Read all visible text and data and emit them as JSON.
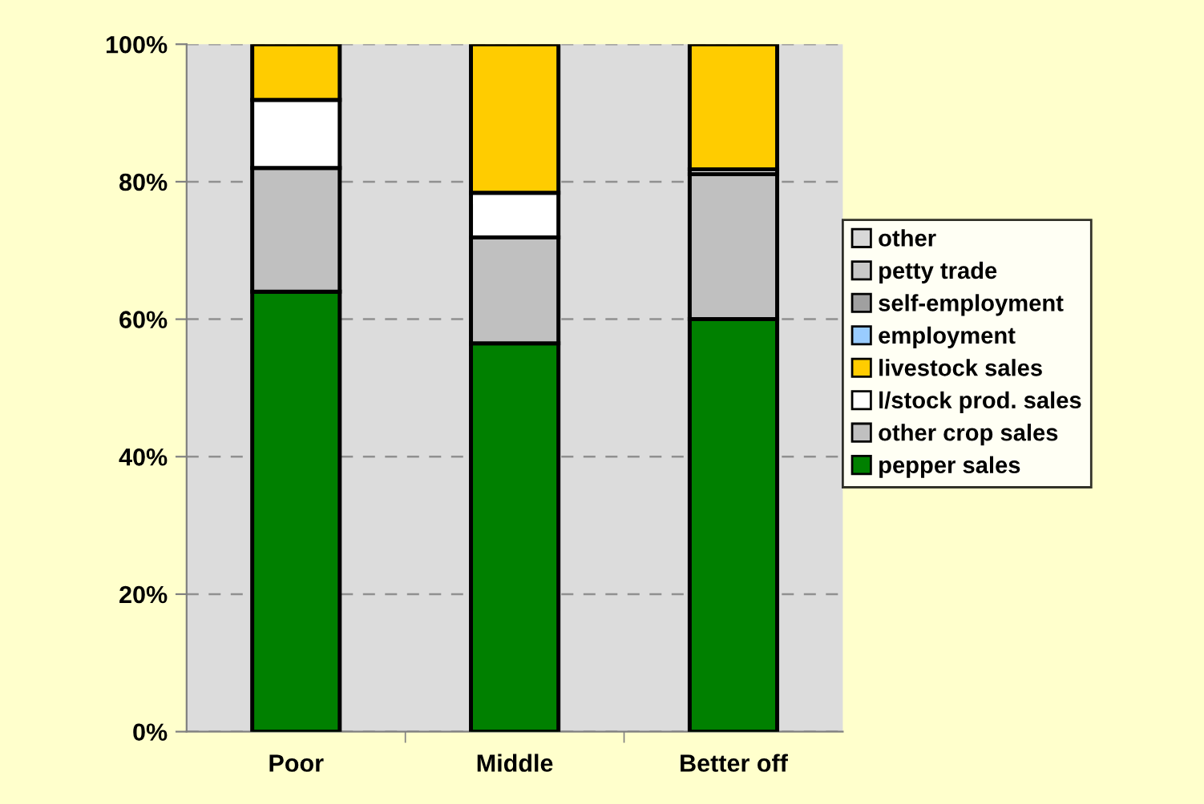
{
  "chart_data": {
    "type": "bar",
    "stacked": true,
    "categories": [
      "Poor",
      "Middle",
      "Better off"
    ],
    "series": [
      {
        "name": "pepper sales",
        "color": "#008000",
        "values": [
          64,
          56.5,
          60
        ]
      },
      {
        "name": "other crop sales",
        "color": "#c0c0c0",
        "values": [
          18,
          15.4,
          21.1
        ]
      },
      {
        "name": "l/stock prod. sales",
        "color": "#ffffff",
        "values": [
          9.9,
          6.5,
          0.7
        ]
      },
      {
        "name": "livestock sales",
        "color": "#ffcc00",
        "values": [
          8.1,
          21.6,
          18.2
        ]
      },
      {
        "name": "employment",
        "color": "#99ccff",
        "values": [
          0,
          0,
          0
        ]
      },
      {
        "name": "self-employment",
        "color": "#a0a0a0",
        "values": [
          0,
          0,
          0
        ]
      },
      {
        "name": "petty trade",
        "color": "#c8c8c8",
        "values": [
          0,
          0,
          0
        ]
      },
      {
        "name": "other",
        "color": "#d8d8d8",
        "values": [
          0,
          0,
          0
        ]
      }
    ],
    "ylim": [
      0,
      100
    ],
    "yticks": [
      {
        "value": 0,
        "label": "0%"
      },
      {
        "value": 20,
        "label": "20%"
      },
      {
        "value": 40,
        "label": "40%"
      },
      {
        "value": 60,
        "label": "60%"
      },
      {
        "value": 80,
        "label": "80%"
      },
      {
        "value": 100,
        "label": "100%"
      }
    ],
    "grid": "y",
    "legend": "right"
  }
}
